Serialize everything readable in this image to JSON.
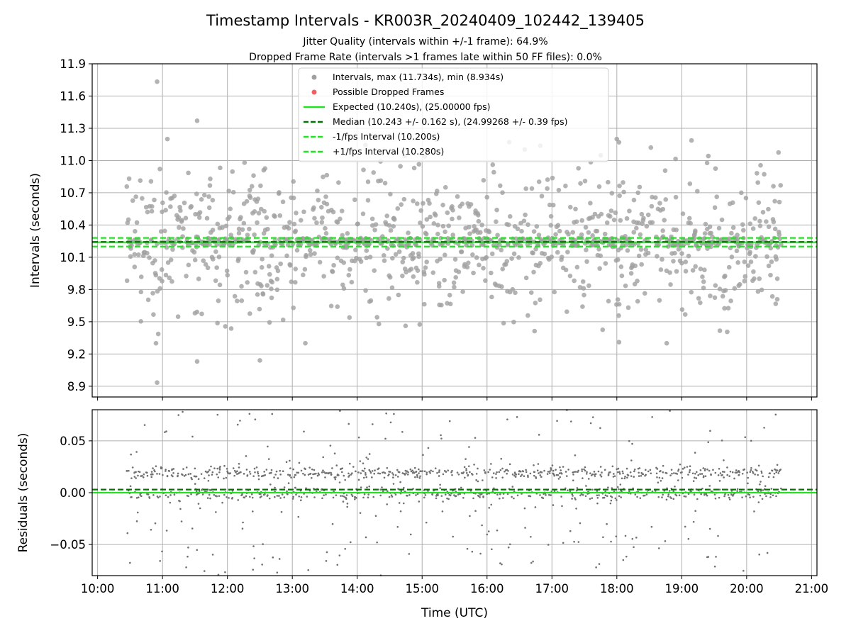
{
  "chart_data": [
    {
      "type": "scatter",
      "title": "Timestamp Intervals - KR003R_20240409_102442_139405",
      "subtitle": "Jitter Quality (intervals within +/-1 frame): 64.9%",
      "subtitle2": "Dropped Frame Rate (intervals >1 frames late within 50 FF files): 0.0%",
      "xlabel": "",
      "ylabel": "Intervals (seconds)",
      "x_tick_labels": [
        "10:00",
        "11:00",
        "12:00",
        "13:00",
        "14:00",
        "15:00",
        "16:00",
        "17:00",
        "18:00",
        "19:00",
        "20:00",
        "21:00"
      ],
      "xlim": [
        "09:55",
        "21:05"
      ],
      "ylim": [
        8.8,
        11.9
      ],
      "y_ticks": [
        8.9,
        9.2,
        9.5,
        9.8,
        10.1,
        10.4,
        10.7,
        11.0,
        11.3,
        11.6,
        11.9
      ],
      "y_tick_labels": [
        "8.9",
        "9.2",
        "9.5",
        "9.8",
        "10.1",
        "10.4",
        "10.7",
        "11.0",
        "11.3",
        "11.6",
        "11.9"
      ],
      "grid": true,
      "legend_position": "top-center",
      "series": [
        {
          "name": "Intervals, max (11.734s), min (8.934s)",
          "kind": "points",
          "color": "#a0a0a0",
          "time_range": [
            "10:27",
            "20:32"
          ],
          "max": 11.734,
          "min": 8.934,
          "median": 10.243,
          "points_notable": [
            {
              "x": "10:55",
              "y": 11.734
            },
            {
              "x": "10:55",
              "y": 8.934
            },
            {
              "x": "11:32",
              "y": 11.37
            },
            {
              "x": "11:32",
              "y": 9.13
            },
            {
              "x": "12:30",
              "y": 9.14
            },
            {
              "x": "18:02",
              "y": 11.17
            },
            {
              "x": "18:02",
              "y": 9.31
            }
          ]
        },
        {
          "name": "Possible Dropped Frames",
          "kind": "points",
          "color": "#f06060",
          "points": []
        },
        {
          "name": "Expected (10.240s), (25.00000 fps)",
          "kind": "hline",
          "y": 10.24,
          "color": "#22e022",
          "style": "solid"
        },
        {
          "name": "Median (10.243 +/- 0.162 s), (24.99268 +/- 0.39 fps)",
          "kind": "hline",
          "y": 10.243,
          "color": "#0a6e0a",
          "style": "dashed"
        },
        {
          "name": "-1/fps Interval (10.200s)",
          "kind": "hline",
          "y": 10.2,
          "color": "#22e022",
          "style": "dashed"
        },
        {
          "name": "+1/fps Interval (10.280s)",
          "kind": "hline",
          "y": 10.28,
          "color": "#22e022",
          "style": "dashed"
        }
      ]
    },
    {
      "type": "scatter",
      "title": "",
      "xlabel": "Time (UTC)",
      "ylabel": "Residuals (seconds)",
      "x_tick_labels": [
        "10:00",
        "11:00",
        "12:00",
        "13:00",
        "14:00",
        "15:00",
        "16:00",
        "17:00",
        "18:00",
        "19:00",
        "20:00",
        "21:00"
      ],
      "xlim": [
        "09:55",
        "21:05"
      ],
      "ylim": [
        -0.08,
        0.08
      ],
      "y_ticks": [
        -0.05,
        0.0,
        0.05
      ],
      "y_tick_labels": [
        "−0.05",
        "0.00",
        "0.05"
      ],
      "grid": true,
      "series": [
        {
          "kind": "points",
          "color": "#707070",
          "time_range": [
            "10:27",
            "20:32"
          ],
          "ylim_clip": [
            -0.08,
            0.08
          ]
        },
        {
          "kind": "hline",
          "y": 0.0,
          "color": "#22e022",
          "style": "solid"
        },
        {
          "kind": "hline",
          "y": 0.003,
          "color": "#0a6e0a",
          "style": "dashed"
        }
      ]
    }
  ]
}
